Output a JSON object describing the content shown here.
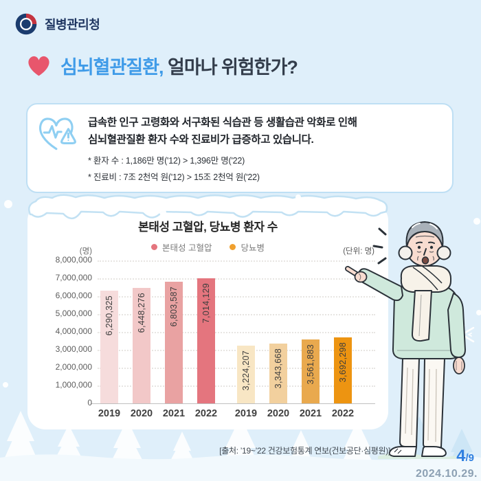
{
  "page": {
    "background": "#DFEFFA"
  },
  "header": {
    "agency_name": "질병관리청"
  },
  "title": {
    "highlight": "심뇌혈관질환,",
    "rest": " 얼마나 위험한가?",
    "highlight_color": "#3F9BE8",
    "text_color": "#333D4B"
  },
  "info_box": {
    "line1": "급속한 인구 고령화와 서구화된 식습관 등 생활습관 악화로 인해",
    "line2": "심뇌혈관질환 환자 수와 진료비가 급증하고 있습니다.",
    "bullets": [
      "* 환자 수 : 1,186만 명('12)  >  1,396만 명('22)",
      "* 진료비 : 7조 2천억 원('12)  >  15조 2천억 원('22)"
    ]
  },
  "chart_data": {
    "type": "bar",
    "title": "본태성 고혈압, 당뇨병 환자 수",
    "unit_note": "(단위: 명)",
    "y_axis_unit": "(명)",
    "categories": [
      "2019",
      "2020",
      "2021",
      "2022"
    ],
    "series": [
      {
        "name": "본태성 고혈압",
        "values": [
          6290325,
          6448276,
          6803587,
          7014129
        ],
        "labels": [
          "6,290,325",
          "6,448,276",
          "6,803,587",
          "7,014,129"
        ],
        "bar_colors": [
          "#F6DCDC",
          "#F2C8C8",
          "#E9A2A2",
          "#E4757E"
        ],
        "legend_color": "#E4757E"
      },
      {
        "name": "당뇨병",
        "values": [
          3224207,
          3343668,
          3561883,
          3692298
        ],
        "labels": [
          "3,224,207",
          "3,343,668",
          "3,561,883",
          "3,692,298"
        ],
        "bar_colors": [
          "#F8E6C4",
          "#F2D09E",
          "#E9A94E",
          "#ED9411"
        ],
        "legend_color": "#F0A02E"
      }
    ],
    "ylim": [
      0,
      8000000
    ],
    "y_ticks": [
      "8,000,000",
      "7,000,000",
      "6,000,000",
      "5,000,000",
      "4,000,000",
      "3,000,000",
      "2,000,000",
      "1,000,000",
      "0"
    ],
    "grid": true,
    "legend_position": "top"
  },
  "footer": {
    "source": "[출처: ’19~’22 건강보험통계 연보(건보공단·심평원)]",
    "page_current": "4",
    "page_total": "/9",
    "date": "2024.10.29."
  }
}
